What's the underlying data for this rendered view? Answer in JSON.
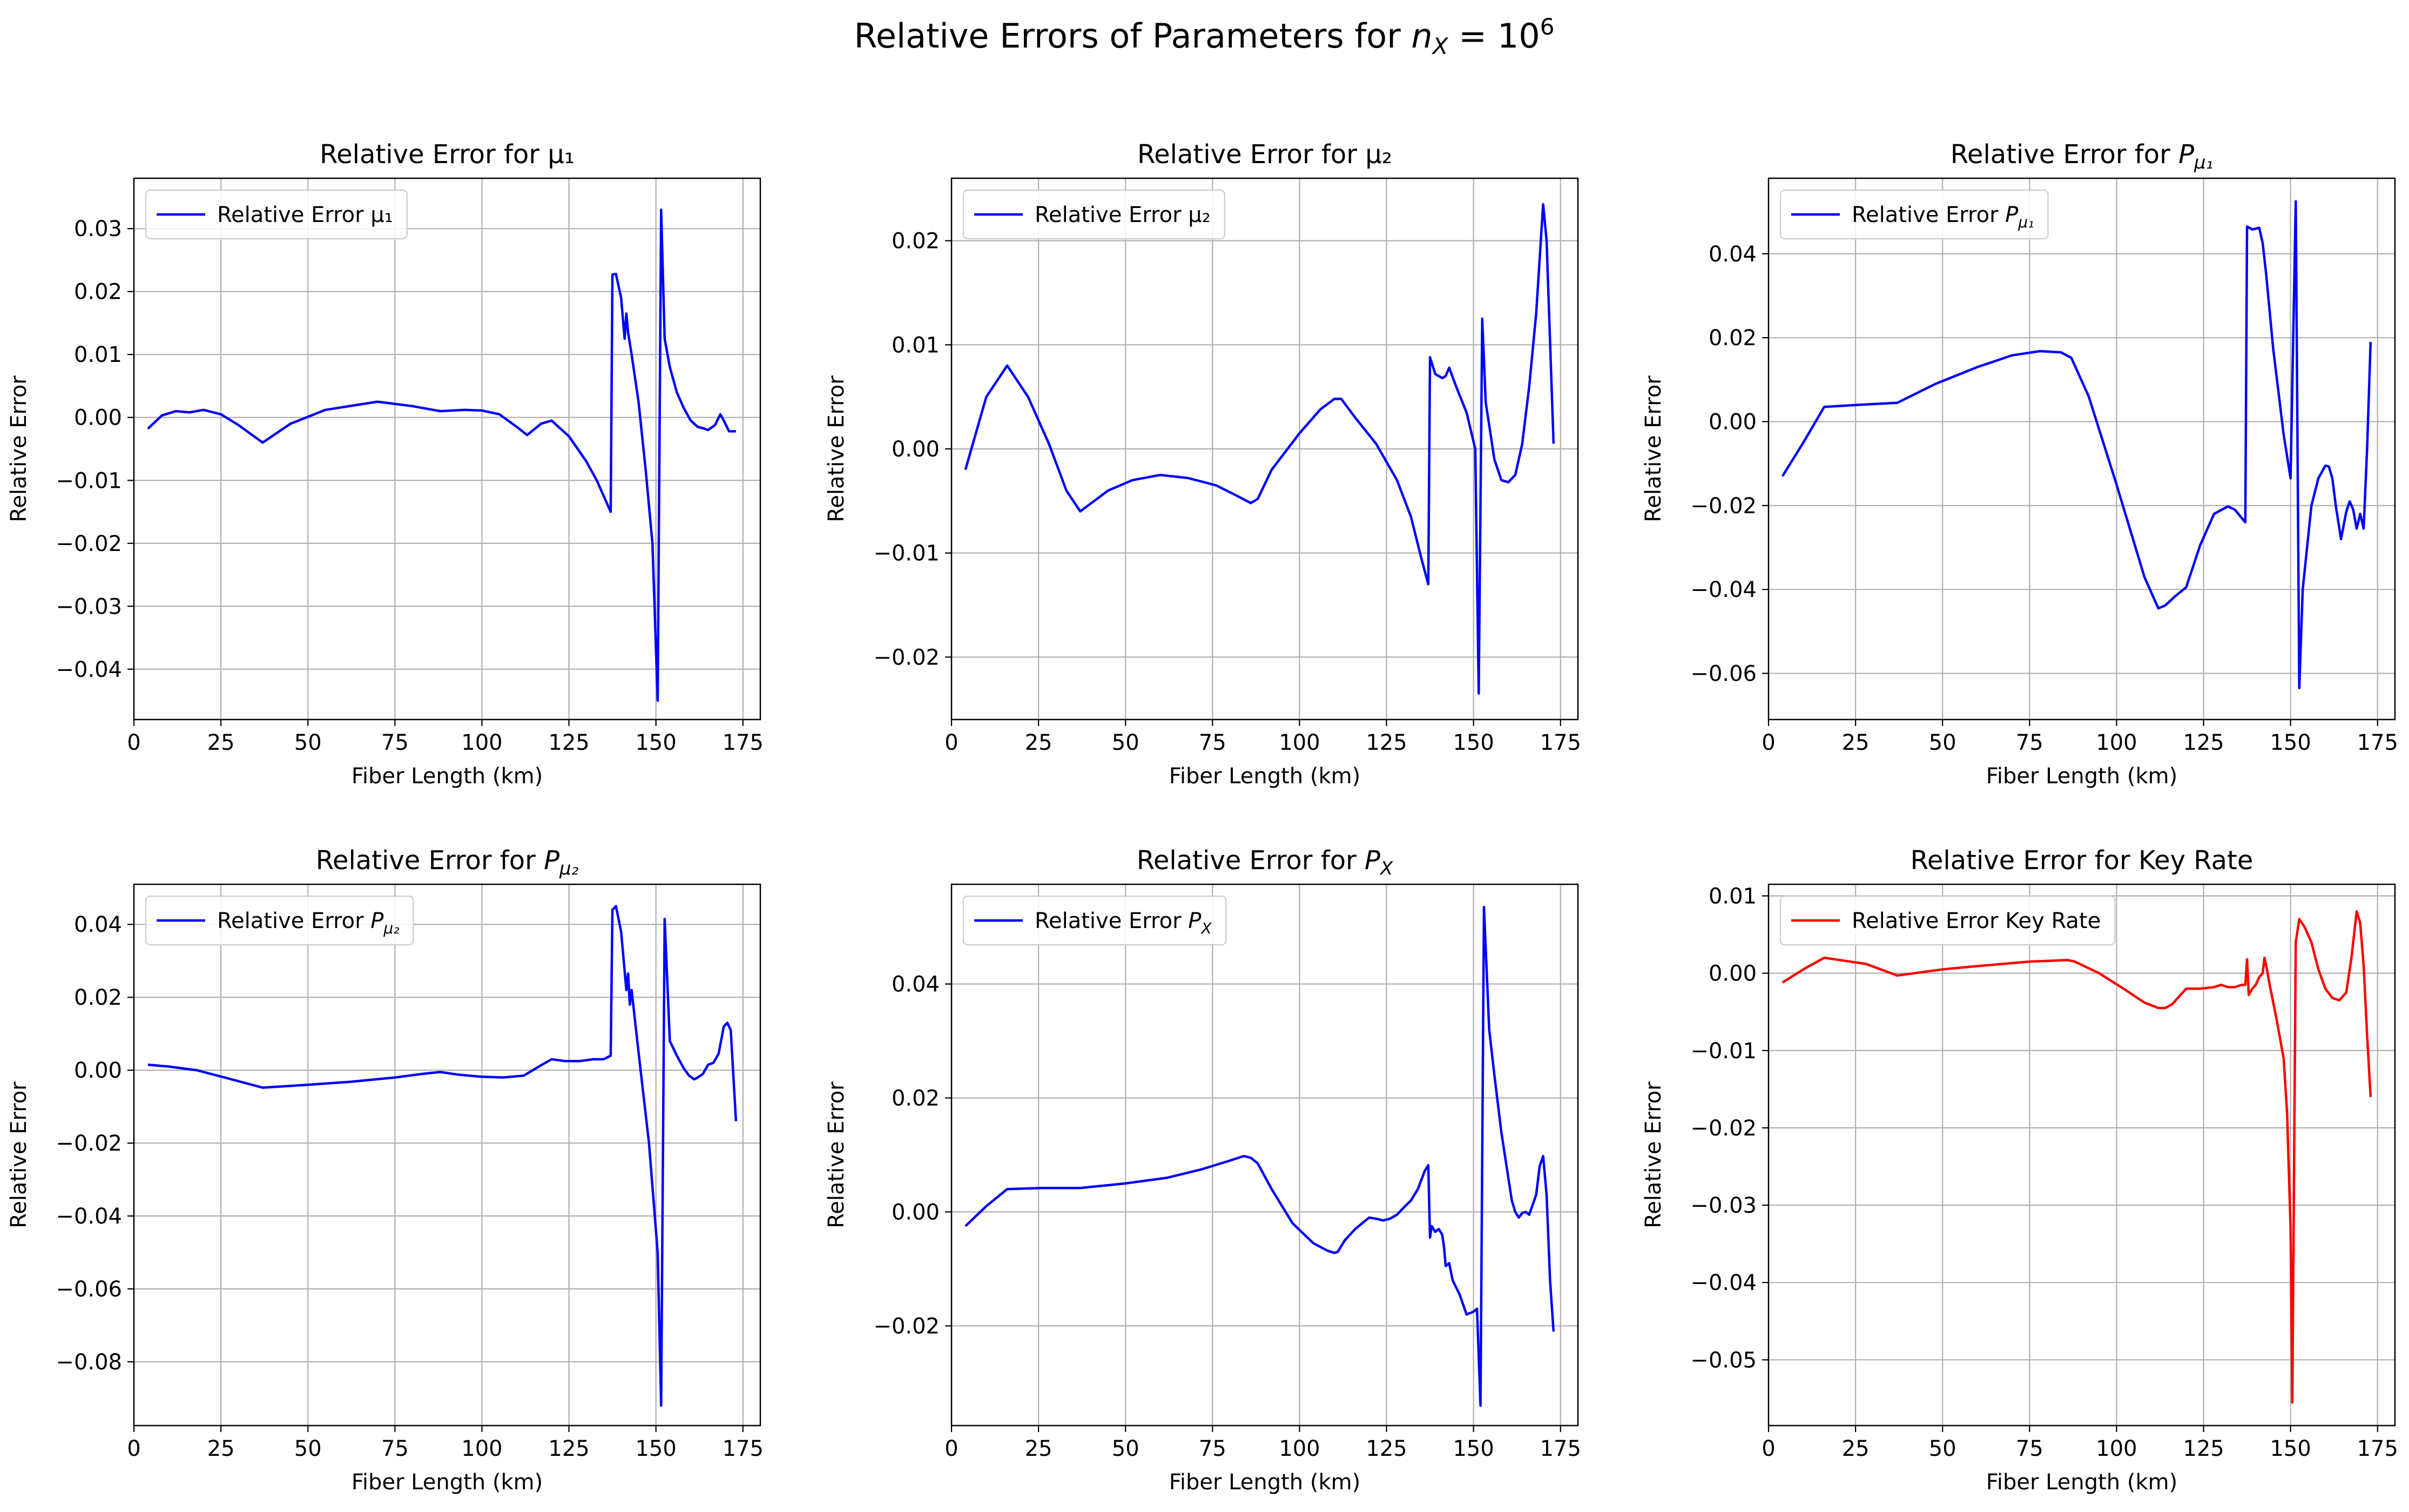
{
  "figure": {
    "suptitle_prefix": "Relative Errors of Parameters for ",
    "suptitle_math": "n_X = 10^6",
    "background": "#ffffff",
    "grid_color": "#b0b0b0"
  },
  "chart_data": [
    {
      "type": "line",
      "title": "Relative Error for μ₁",
      "xlabel": "Fiber Length (km)",
      "ylabel": "Relative Error",
      "xlim": [
        0,
        180
      ],
      "ylim": [
        -0.048,
        0.038
      ],
      "xticks": [
        0,
        25,
        50,
        75,
        100,
        125,
        150,
        175
      ],
      "yticks": [
        -0.04,
        -0.03,
        -0.02,
        -0.01,
        0.0,
        0.01,
        0.02,
        0.03
      ],
      "ytick_labels": [
        "−0.04",
        "−0.03",
        "−0.02",
        "−0.01",
        "0.00",
        "0.01",
        "0.02",
        "0.03"
      ],
      "grid": true,
      "legend_position": "upper-left",
      "series": [
        {
          "name": "Relative Error μ₁",
          "color": "#0000ff",
          "x": [
            4,
            8,
            12,
            16,
            20,
            25,
            30,
            37,
            45,
            55,
            70,
            80,
            88,
            95,
            100,
            105,
            110,
            113,
            117,
            120,
            125,
            130,
            133,
            137,
            137.5,
            138.5,
            140,
            141,
            141.5,
            142,
            143,
            145,
            147,
            149,
            150.5,
            151.5,
            152.5,
            154,
            156,
            158,
            160,
            162,
            164,
            165,
            167,
            168.5,
            169.5,
            171,
            173
          ],
          "y": [
            -0.0018,
            0.0003,
            0.001,
            0.0008,
            0.0012,
            0.0005,
            -0.0012,
            -0.004,
            -0.001,
            0.0012,
            0.0025,
            0.0018,
            0.001,
            0.0012,
            0.0011,
            0.0005,
            -0.0015,
            -0.0028,
            -0.001,
            -0.0005,
            -0.003,
            -0.007,
            -0.01,
            -0.015,
            0.0227,
            0.0228,
            0.019,
            0.0125,
            0.0165,
            0.0135,
            0.01,
            0.0025,
            -0.008,
            -0.02,
            -0.045,
            0.033,
            0.0125,
            0.008,
            0.004,
            0.0015,
            -0.0005,
            -0.0015,
            -0.0018,
            -0.002,
            -0.0012,
            0.0005,
            -0.0005,
            -0.0022,
            -0.0022
          ]
        }
      ]
    },
    {
      "type": "line",
      "title": "Relative Error for μ₂",
      "xlabel": "Fiber Length (km)",
      "ylabel": "Relative Error",
      "xlim": [
        0,
        180
      ],
      "ylim": [
        -0.026,
        0.026
      ],
      "xticks": [
        0,
        25,
        50,
        75,
        100,
        125,
        150,
        175
      ],
      "yticks": [
        -0.02,
        -0.01,
        0.0,
        0.01,
        0.02
      ],
      "ytick_labels": [
        "−0.02",
        "−0.01",
        "0.00",
        "0.01",
        "0.02"
      ],
      "grid": true,
      "legend_position": "upper-left",
      "series": [
        {
          "name": "Relative Error μ₂",
          "color": "#0000ff",
          "x": [
            4,
            10,
            16,
            22,
            28,
            33,
            37,
            45,
            52,
            60,
            68,
            76,
            82,
            86,
            88,
            92,
            100,
            106,
            110,
            112,
            116,
            122,
            128,
            132,
            135,
            137,
            137.5,
            139,
            141,
            142,
            143,
            145,
            148,
            150.5,
            151.5,
            152.5,
            153.5,
            156,
            158,
            160,
            162,
            164,
            166,
            168,
            170,
            171,
            173
          ],
          "y": [
            -0.002,
            0.005,
            0.008,
            0.005,
            0.0005,
            -0.004,
            -0.006,
            -0.004,
            -0.003,
            -0.0025,
            -0.0028,
            -0.0035,
            -0.0045,
            -0.0052,
            -0.0048,
            -0.002,
            0.0015,
            0.0038,
            0.0048,
            0.0048,
            0.003,
            0.0005,
            -0.003,
            -0.0065,
            -0.0105,
            -0.013,
            0.0088,
            0.0072,
            0.0068,
            0.007,
            0.0078,
            0.006,
            0.0035,
            0.0,
            -0.0235,
            0.0125,
            0.0045,
            -0.001,
            -0.003,
            -0.0032,
            -0.0025,
            0.0005,
            0.006,
            0.013,
            0.0235,
            0.02,
            0.0005
          ]
        }
      ]
    },
    {
      "type": "line",
      "title": "Relative Error for P_{μ₁}",
      "xlabel": "Fiber Length (km)",
      "ylabel": "Relative Error",
      "xlim": [
        0,
        180
      ],
      "ylim": [
        -0.071,
        0.058
      ],
      "xticks": [
        0,
        25,
        50,
        75,
        100,
        125,
        150,
        175
      ],
      "yticks": [
        -0.06,
        -0.04,
        -0.02,
        0.0,
        0.02,
        0.04
      ],
      "ytick_labels": [
        "−0.06",
        "−0.04",
        "−0.02",
        "0.00",
        "0.02",
        "0.04"
      ],
      "grid": true,
      "legend_position": "upper-left",
      "series": [
        {
          "name": "Relative Error P_{μ₁}",
          "color": "#0000ff",
          "x": [
            4,
            10,
            16,
            26,
            37,
            48,
            60,
            70,
            78,
            84,
            87,
            92,
            100,
            108,
            112,
            114,
            117,
            120,
            124,
            128,
            132,
            134,
            136,
            137,
            137.5,
            139,
            141,
            142,
            143,
            145,
            148,
            150,
            151.5,
            152.5,
            153.5,
            156,
            158,
            160,
            161,
            162,
            163,
            164.5,
            166,
            167,
            168,
            169,
            170,
            171,
            172,
            173
          ],
          "y": [
            -0.013,
            -0.005,
            0.0035,
            0.004,
            0.0045,
            0.009,
            0.013,
            0.0158,
            0.0168,
            0.0165,
            0.0152,
            0.006,
            -0.015,
            -0.037,
            -0.0445,
            -0.0438,
            -0.0415,
            -0.0395,
            -0.0295,
            -0.022,
            -0.0202,
            -0.021,
            -0.023,
            -0.024,
            0.0465,
            0.0458,
            0.0462,
            0.0425,
            0.035,
            0.0175,
            -0.003,
            -0.0135,
            0.0525,
            -0.0635,
            -0.04,
            -0.02,
            -0.0135,
            -0.0105,
            -0.0107,
            -0.0135,
            -0.02,
            -0.028,
            -0.0215,
            -0.019,
            -0.021,
            -0.0255,
            -0.022,
            -0.0255,
            -0.0065,
            0.019
          ]
        }
      ]
    },
    {
      "type": "line",
      "title": "Relative Error for P_{μ₂}",
      "xlabel": "Fiber Length (km)",
      "ylabel": "Relative Error",
      "xlim": [
        0,
        180
      ],
      "ylim": [
        -0.0975,
        0.051
      ],
      "xticks": [
        0,
        25,
        50,
        75,
        100,
        125,
        150,
        175
      ],
      "yticks": [
        -0.08,
        -0.06,
        -0.04,
        -0.02,
        0.0,
        0.02,
        0.04
      ],
      "ytick_labels": [
        "−0.08",
        "−0.06",
        "−0.04",
        "−0.02",
        "0.00",
        "0.02",
        "0.04"
      ],
      "grid": true,
      "legend_position": "upper-left",
      "series": [
        {
          "name": "Relative Error P_{μ₂}",
          "color": "#0000ff",
          "x": [
            4,
            10,
            18,
            26,
            37,
            50,
            62,
            75,
            83,
            88,
            93,
            100,
            106,
            112,
            116,
            120,
            124,
            128,
            132,
            135,
            137,
            137.5,
            138.5,
            140,
            141.5,
            142,
            142.5,
            143,
            145,
            148,
            150.5,
            151.5,
            152.5,
            154,
            156,
            158,
            159.5,
            161,
            162,
            163.5,
            165,
            166.5,
            168,
            169.5,
            170.5,
            171.5,
            173
          ],
          "y": [
            0.0015,
            0.001,
            0.0,
            -0.002,
            -0.0048,
            -0.004,
            -0.0032,
            -0.002,
            -0.001,
            -0.0005,
            -0.0012,
            -0.0018,
            -0.002,
            -0.0015,
            0.0008,
            0.003,
            0.0025,
            0.0025,
            0.003,
            0.003,
            0.004,
            0.044,
            0.045,
            0.038,
            0.022,
            0.0265,
            0.018,
            0.022,
            0.005,
            -0.02,
            -0.05,
            -0.092,
            0.0415,
            0.008,
            0.004,
            0.0005,
            -0.0015,
            -0.0025,
            -0.002,
            -0.001,
            0.0015,
            0.002,
            0.0045,
            0.012,
            0.013,
            0.011,
            -0.014
          ]
        }
      ]
    },
    {
      "type": "line",
      "title": "Relative Error for P_X",
      "xlabel": "Fiber Length (km)",
      "ylabel": "Relative Error",
      "xlim": [
        0,
        180
      ],
      "ylim": [
        -0.0375,
        0.0575
      ],
      "xticks": [
        0,
        25,
        50,
        75,
        100,
        125,
        150,
        175
      ],
      "yticks": [
        -0.02,
        0.0,
        0.02,
        0.04
      ],
      "ytick_labels": [
        "−0.02",
        "0.00",
        "0.02",
        "0.04"
      ],
      "grid": true,
      "legend_position": "upper-left",
      "series": [
        {
          "name": "Relative Error P_X",
          "color": "#0000ff",
          "x": [
            4,
            10,
            16,
            26,
            37,
            50,
            62,
            72,
            80,
            84,
            86,
            88,
            92,
            98,
            104,
            108,
            110,
            111,
            113,
            116,
            120,
            122,
            124,
            126,
            128,
            130,
            132,
            134,
            136,
            137,
            137.5,
            138,
            139,
            140,
            141,
            141.5,
            142,
            143,
            144,
            146,
            148,
            150,
            151,
            152,
            153,
            154.5,
            156,
            158,
            160,
            161,
            162,
            163,
            164,
            165,
            166,
            168,
            169,
            170,
            171,
            172,
            173
          ],
          "y": [
            -0.0025,
            0.001,
            0.004,
            0.0042,
            0.0042,
            0.005,
            0.006,
            0.0075,
            0.009,
            0.0098,
            0.0095,
            0.0085,
            0.004,
            -0.002,
            -0.0055,
            -0.0068,
            -0.0072,
            -0.007,
            -0.005,
            -0.003,
            -0.001,
            -0.0012,
            -0.0015,
            -0.0012,
            -0.0005,
            0.0008,
            0.002,
            0.004,
            0.0072,
            0.0082,
            -0.0045,
            -0.0025,
            -0.0035,
            -0.003,
            -0.004,
            -0.006,
            -0.0095,
            -0.009,
            -0.012,
            -0.0145,
            -0.018,
            -0.0175,
            -0.017,
            -0.034,
            0.0535,
            0.032,
            0.024,
            0.014,
            0.006,
            0.002,
            0.0,
            -0.001,
            -0.0002,
            0.0,
            -0.0005,
            0.003,
            0.008,
            0.0098,
            0.003,
            -0.012,
            -0.021
          ]
        }
      ]
    },
    {
      "type": "line",
      "title": "Relative Error for Key Rate",
      "xlabel": "Fiber Length (km)",
      "ylabel": "Relative Error",
      "xlim": [
        0,
        180
      ],
      "ylim": [
        -0.0585,
        0.0115
      ],
      "xticks": [
        0,
        25,
        50,
        75,
        100,
        125,
        150,
        175
      ],
      "yticks": [
        -0.05,
        -0.04,
        -0.03,
        -0.02,
        -0.01,
        0.0,
        0.01
      ],
      "ytick_labels": [
        "−0.05",
        "−0.04",
        "−0.03",
        "−0.02",
        "−0.01",
        "0.00",
        "0.01"
      ],
      "grid": true,
      "legend_position": "upper-left",
      "series": [
        {
          "name": "Relative Error Key Rate",
          "color": "#ff0000",
          "x": [
            4,
            10,
            16,
            22,
            28,
            37,
            50,
            62,
            75,
            86,
            88,
            95,
            102,
            108,
            112,
            114,
            116,
            118,
            120,
            124,
            128,
            130,
            132,
            134,
            136,
            137,
            137.5,
            138,
            139,
            140,
            141,
            142,
            142.5,
            143,
            144,
            146,
            148,
            149,
            150,
            150.5,
            151.5,
            152.5,
            154,
            156,
            158,
            160,
            162,
            164,
            166,
            167.5,
            169,
            170,
            171,
            172,
            173
          ],
          "y": [
            -0.0012,
            0.0005,
            0.002,
            0.0016,
            0.0012,
            -0.0003,
            0.0005,
            0.001,
            0.0015,
            0.0017,
            0.0015,
            0.0,
            -0.002,
            -0.0038,
            -0.0045,
            -0.0045,
            -0.004,
            -0.003,
            -0.002,
            -0.002,
            -0.0018,
            -0.0015,
            -0.0018,
            -0.0018,
            -0.0015,
            -0.0015,
            0.0018,
            -0.0028,
            -0.002,
            -0.0015,
            -0.0005,
            0.0,
            0.002,
            0.001,
            -0.0015,
            -0.006,
            -0.011,
            -0.018,
            -0.033,
            -0.0555,
            0.004,
            0.007,
            0.006,
            0.004,
            0.0005,
            -0.002,
            -0.0032,
            -0.0035,
            -0.0025,
            0.002,
            0.008,
            0.0065,
            0.001,
            -0.008,
            -0.016
          ]
        }
      ]
    }
  ]
}
